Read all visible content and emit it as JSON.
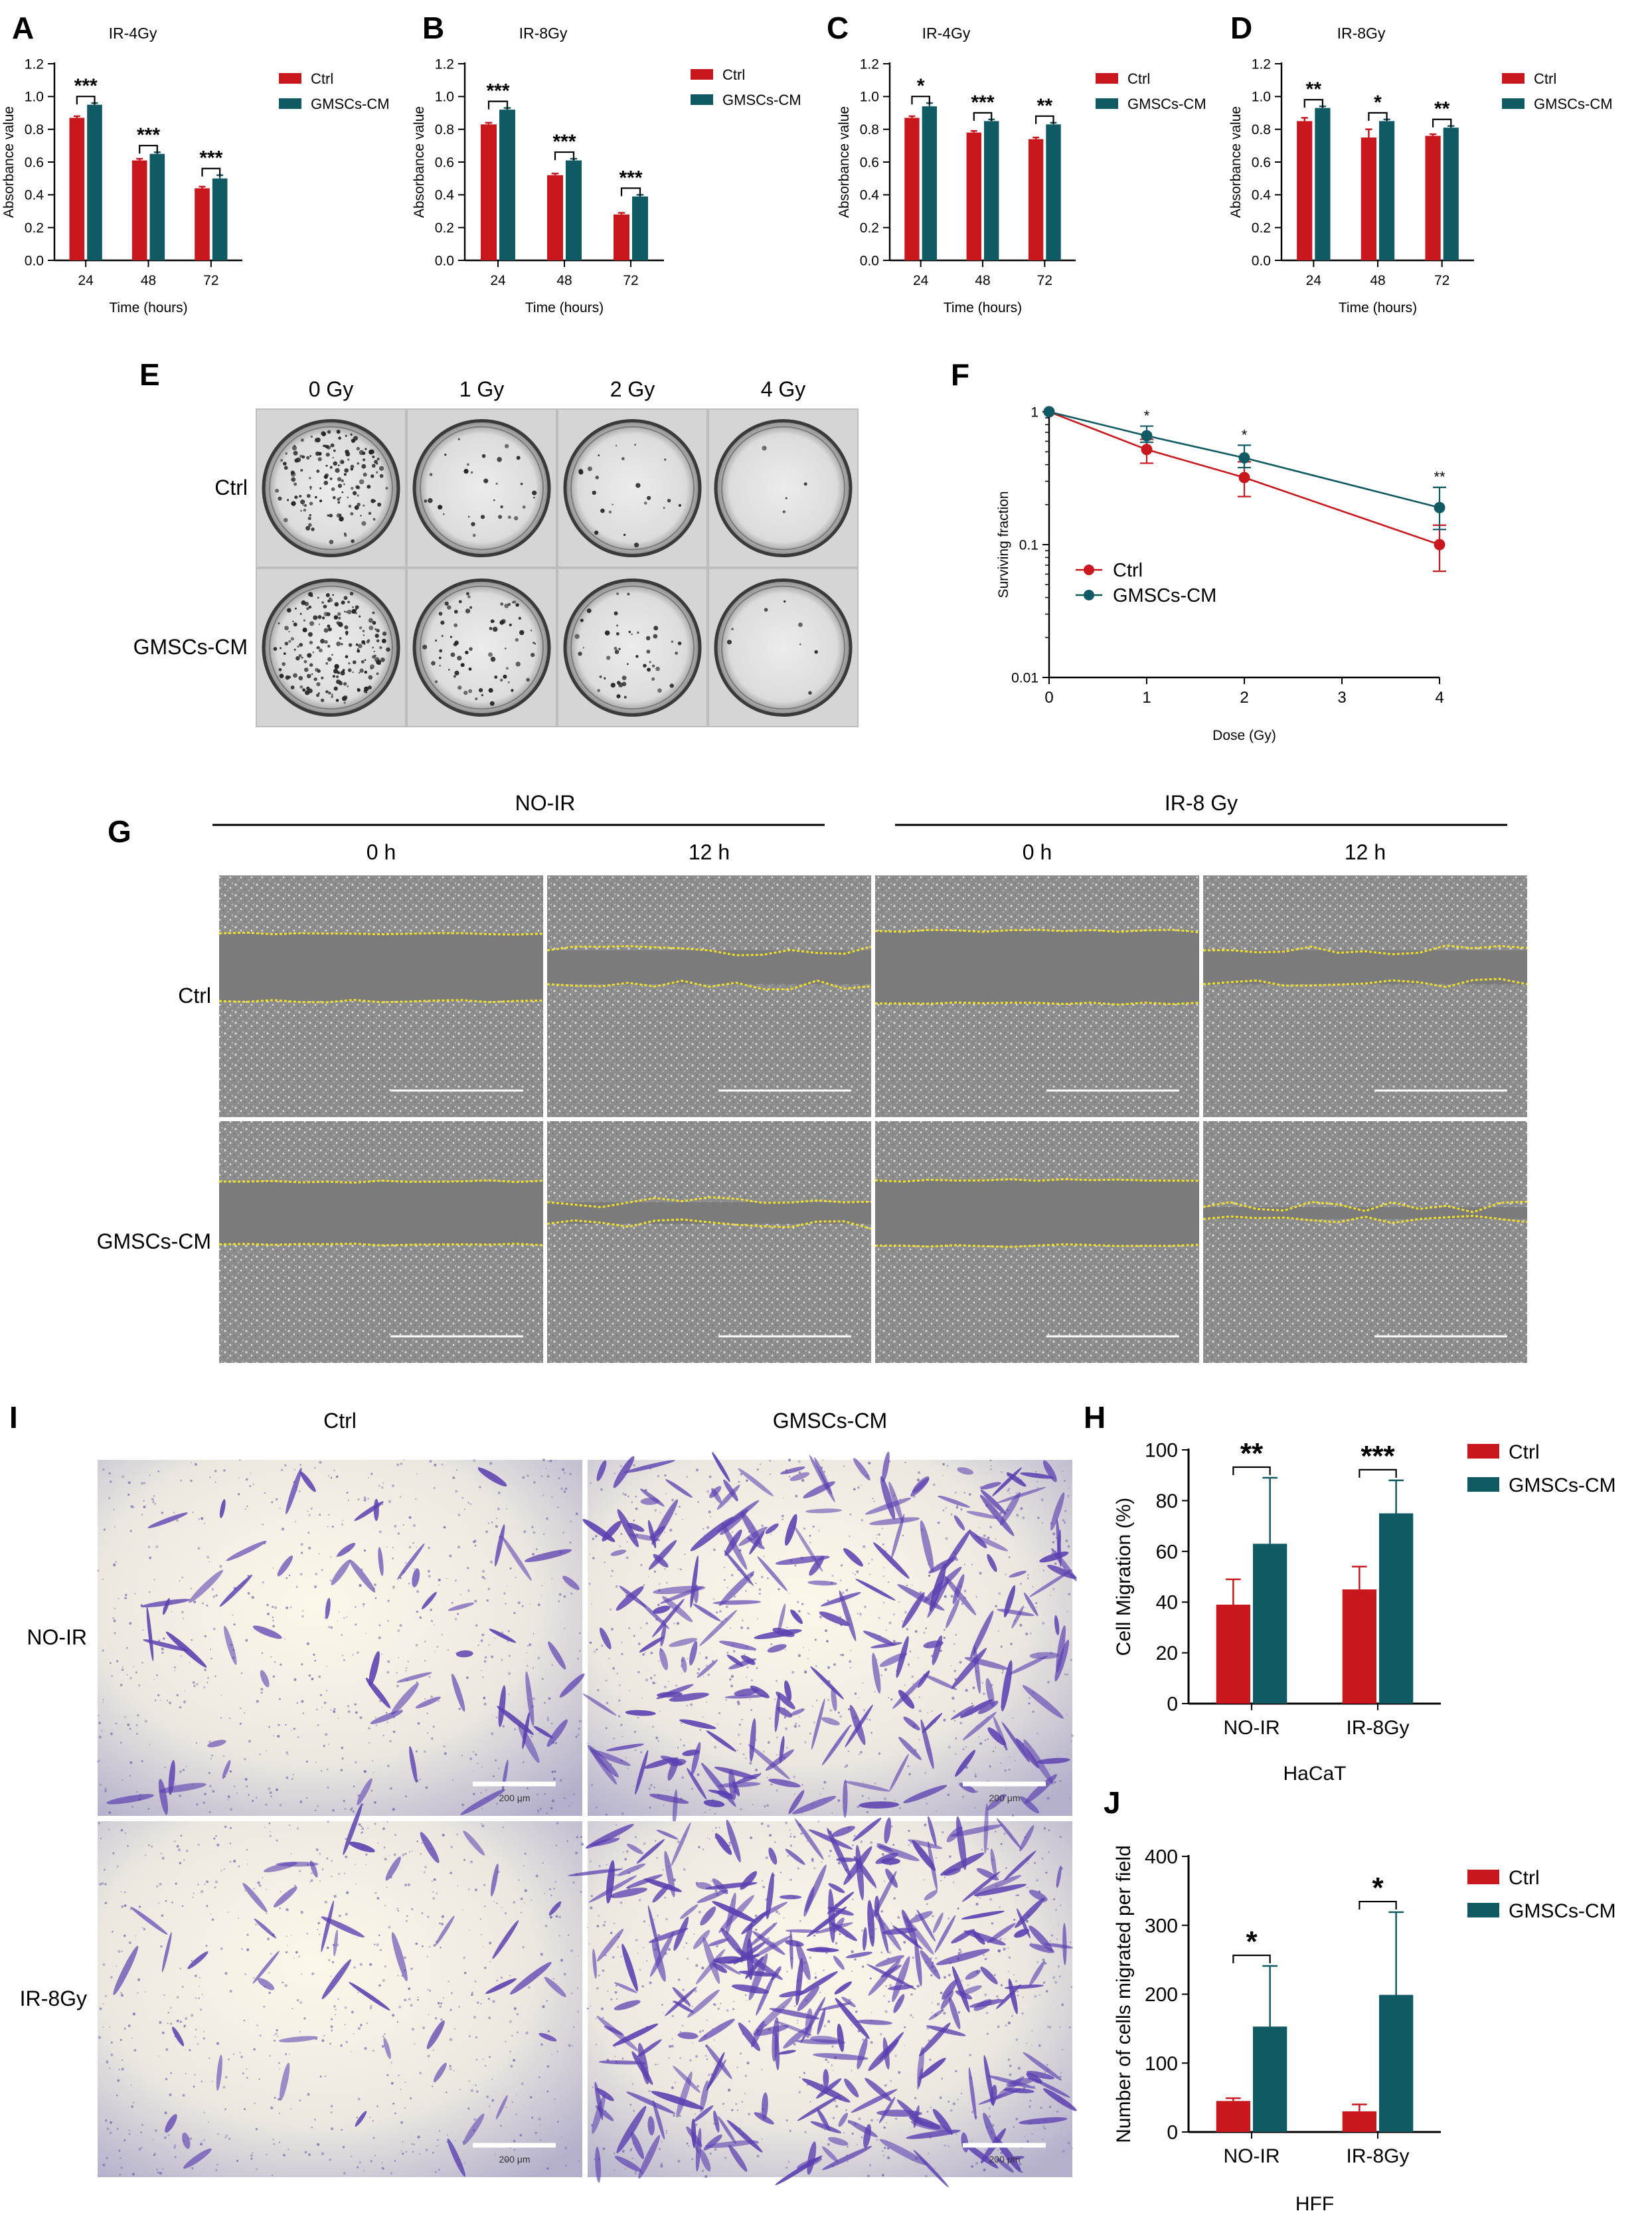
{
  "colors": {
    "ctrl": "#c8181e",
    "gmsc": "#105a64",
    "axis": "#000000",
    "scratch_line": "#f0e02a",
    "stain": "#5a3fb0"
  },
  "chart_data": [
    {
      "id": "A",
      "type": "bar",
      "panel_label": "A",
      "title": "IR-4Gy",
      "xlabel": "Time (hours)",
      "ylabel": "Absorbance value",
      "categories": [
        "24",
        "48",
        "72"
      ],
      "ylim": [
        0,
        1.2
      ],
      "yticks": [
        0.0,
        0.2,
        0.4,
        0.6,
        0.8,
        1.0,
        1.2
      ],
      "tick_labels": [
        "0.0",
        "0.2",
        "0.4",
        "0.6",
        "0.8",
        "1.0",
        "1.2"
      ],
      "series": [
        {
          "name": "Ctrl",
          "color": "#c8181e",
          "values": [
            0.87,
            0.61,
            0.44
          ],
          "errors": [
            0.01,
            0.01,
            0.01
          ]
        },
        {
          "name": "GMSCs-CM",
          "color": "#105a64",
          "values": [
            0.95,
            0.65,
            0.5
          ],
          "errors": [
            0.01,
            0.01,
            0.02
          ]
        }
      ],
      "significance": [
        "***",
        "***",
        "***"
      ]
    },
    {
      "id": "B",
      "type": "bar",
      "panel_label": "B",
      "title": "IR-8Gy",
      "xlabel": "Time (hours)",
      "ylabel": "Absorbance value",
      "categories": [
        "24",
        "48",
        "72"
      ],
      "ylim": [
        0,
        1.2
      ],
      "yticks": [
        0.0,
        0.2,
        0.4,
        0.6,
        0.8,
        1.0,
        1.2
      ],
      "tick_labels": [
        "0.0",
        "0.2",
        "0.4",
        "0.6",
        "0.8",
        "1.0",
        "1.2"
      ],
      "series": [
        {
          "name": "Ctrl",
          "color": "#c8181e",
          "values": [
            0.83,
            0.52,
            0.28
          ],
          "errors": [
            0.01,
            0.01,
            0.01
          ]
        },
        {
          "name": "GMSCs-CM",
          "color": "#105a64",
          "values": [
            0.92,
            0.61,
            0.39
          ],
          "errors": [
            0.01,
            0.01,
            0.01
          ]
        }
      ],
      "significance": [
        "***",
        "***",
        "***"
      ]
    },
    {
      "id": "C",
      "type": "bar",
      "panel_label": "C",
      "title": "IR-4Gy",
      "xlabel": "Time (hours)",
      "ylabel": "Absorbance value",
      "categories": [
        "24",
        "48",
        "72"
      ],
      "ylim": [
        0,
        1.2
      ],
      "yticks": [
        0.0,
        0.2,
        0.4,
        0.6,
        0.8,
        1.0,
        1.2
      ],
      "tick_labels": [
        "0.0",
        "0.2",
        "0.4",
        "0.6",
        "0.8",
        "1.0",
        "1.2"
      ],
      "series": [
        {
          "name": "Ctrl",
          "color": "#c8181e",
          "values": [
            0.87,
            0.78,
            0.74
          ],
          "errors": [
            0.01,
            0.01,
            0.01
          ]
        },
        {
          "name": "GMSCs-CM",
          "color": "#105a64",
          "values": [
            0.94,
            0.85,
            0.83
          ],
          "errors": [
            0.02,
            0.01,
            0.01
          ]
        }
      ],
      "significance": [
        "*",
        "***",
        "**"
      ]
    },
    {
      "id": "D",
      "type": "bar",
      "panel_label": "D",
      "title": "IR-8Gy",
      "xlabel": "Time (hours)",
      "ylabel": "Absorbance value",
      "categories": [
        "24",
        "48",
        "72"
      ],
      "ylim": [
        0,
        1.2
      ],
      "yticks": [
        0.0,
        0.2,
        0.4,
        0.6,
        0.8,
        1.0,
        1.2
      ],
      "tick_labels": [
        "0.0",
        "0.2",
        "0.4",
        "0.6",
        "0.8",
        "1.0",
        "1.2"
      ],
      "series": [
        {
          "name": "Ctrl",
          "color": "#c8181e",
          "values": [
            0.85,
            0.75,
            0.76
          ],
          "errors": [
            0.02,
            0.05,
            0.01
          ]
        },
        {
          "name": "GMSCs-CM",
          "color": "#105a64",
          "values": [
            0.93,
            0.85,
            0.81
          ],
          "errors": [
            0.01,
            0.01,
            0.01
          ]
        }
      ],
      "significance": [
        "**",
        "*",
        "**"
      ]
    },
    {
      "id": "F",
      "type": "line",
      "panel_label": "F",
      "title": "",
      "xlabel": "Dose (Gy)",
      "ylabel": "Surviving fraction",
      "x": [
        0,
        1,
        2,
        4
      ],
      "xticks": [
        0,
        1,
        2,
        3,
        4
      ],
      "xlim": [
        0,
        4
      ],
      "yscale": "log",
      "ylim": [
        0.01,
        1
      ],
      "yticks": [
        0.01,
        0.1,
        1
      ],
      "tick_labels": [
        "0.01",
        "0.1",
        "1"
      ],
      "series": [
        {
          "name": "Ctrl",
          "color": "#c8181e",
          "values": [
            1.0,
            0.52,
            0.32,
            0.1
          ],
          "err_low": [
            1.0,
            0.41,
            0.23,
            0.063
          ],
          "err_high": [
            1.0,
            0.62,
            0.42,
            0.14
          ]
        },
        {
          "name": "GMSCs-CM",
          "color": "#105a64",
          "values": [
            1.0,
            0.66,
            0.45,
            0.19
          ],
          "err_low": [
            1.0,
            0.59,
            0.38,
            0.13
          ],
          "err_high": [
            1.0,
            0.78,
            0.56,
            0.27
          ]
        }
      ],
      "significance": [
        "",
        "*",
        "*",
        "**"
      ]
    },
    {
      "id": "H",
      "type": "bar",
      "panel_label": "H",
      "title": "",
      "xlabel": "HaCaT",
      "ylabel": "Cell Migration (%)",
      "categories": [
        "NO-IR",
        "IR-8Gy"
      ],
      "ylim": [
        0,
        100
      ],
      "yticks": [
        0,
        20,
        40,
        60,
        80,
        100
      ],
      "tick_labels": [
        "0",
        "20",
        "40",
        "60",
        "80",
        "100"
      ],
      "series": [
        {
          "name": "Ctrl",
          "color": "#c8181e",
          "values": [
            39,
            45
          ],
          "errors": [
            10,
            9
          ]
        },
        {
          "name": "GMSCs-CM",
          "color": "#105a64",
          "values": [
            63,
            75
          ],
          "errors": [
            26,
            13
          ]
        }
      ],
      "significance": [
        "**",
        "***"
      ]
    },
    {
      "id": "J",
      "type": "bar",
      "panel_label": "J",
      "title": "",
      "xlabel": "HFF",
      "ylabel": "Number of cells migrated per field",
      "categories": [
        "NO-IR",
        "IR-8Gy"
      ],
      "ylim": [
        0,
        400
      ],
      "yticks": [
        0,
        100,
        200,
        300,
        400
      ],
      "tick_labels": [
        "0",
        "100",
        "200",
        "300",
        "400"
      ],
      "series": [
        {
          "name": "Ctrl",
          "color": "#c8181e",
          "values": [
            45,
            30
          ],
          "errors": [
            4,
            10
          ]
        },
        {
          "name": "GMSCs-CM",
          "color": "#105a64",
          "values": [
            153,
            199
          ],
          "errors": [
            88,
            120
          ]
        }
      ],
      "significance": [
        "*",
        "*"
      ]
    }
  ],
  "panel_e": {
    "label": "E",
    "columns": [
      "0 Gy",
      "1 Gy",
      "2 Gy",
      "4 Gy"
    ],
    "rows": [
      "Ctrl",
      "GMSCs-CM"
    ],
    "colony_counts": [
      [
        150,
        30,
        22,
        4
      ],
      [
        190,
        70,
        45,
        8
      ]
    ]
  },
  "panel_g": {
    "label": "G",
    "groups": [
      "NO-IR",
      "IR-8 Gy"
    ],
    "columns": [
      "0 h",
      "12 h",
      "0 h",
      "12 h"
    ],
    "rows": [
      "Ctrl",
      "GMSCs-CM"
    ],
    "gap_fraction": [
      [
        0.28,
        0.14,
        0.3,
        0.14
      ],
      [
        0.26,
        0.09,
        0.27,
        0.05
      ]
    ]
  },
  "panel_i": {
    "label": "I",
    "columns": [
      "Ctrl",
      "GMSCs-CM"
    ],
    "rows": [
      "NO-IR",
      "IR-8Gy"
    ],
    "scalebar": "200 μm",
    "stained_cell_density": [
      [
        60,
        230
      ],
      [
        45,
        300
      ]
    ]
  }
}
